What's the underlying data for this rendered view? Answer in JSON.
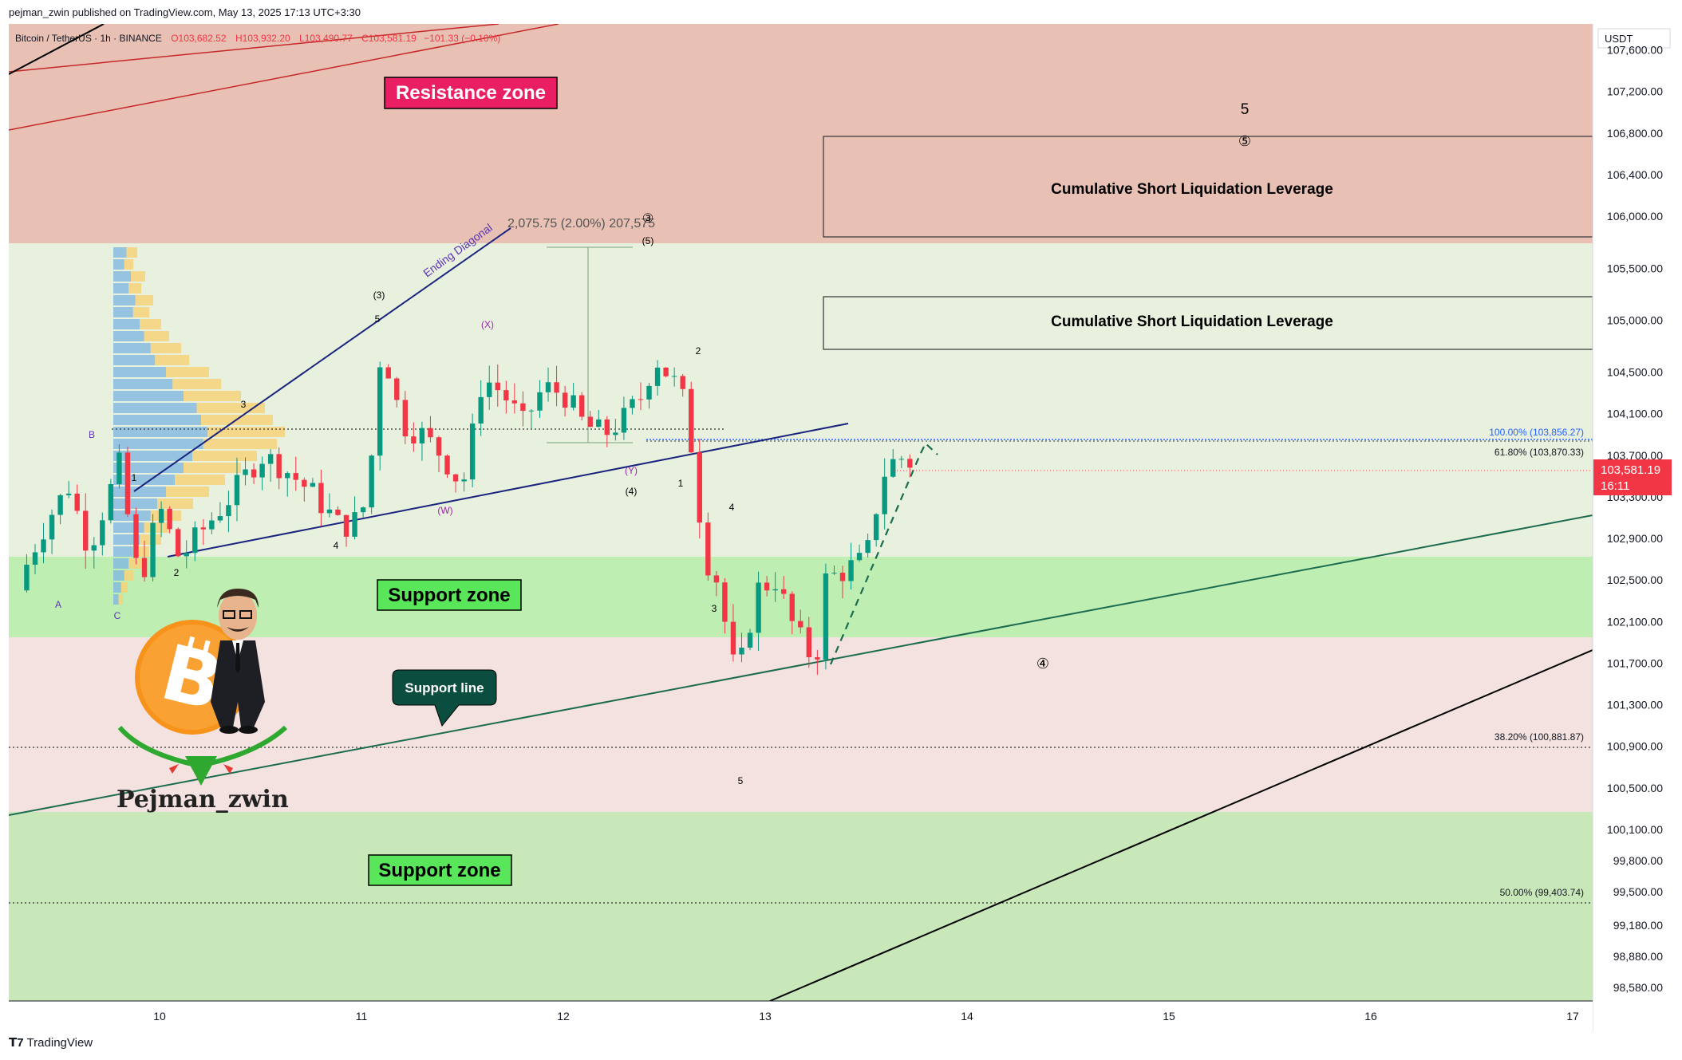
{
  "publisher_line": "pejman_zwin published on TradingView.com, May 13, 2025 17:13 UTC+3:30",
  "brand_label": "TradingView",
  "brand_icon": "tradingview-logo-icon",
  "header": {
    "symbol": "Bitcoin / TetherUS · 1h · BINANCE",
    "open": "O103,682.52",
    "high": "H103,932.20",
    "low": "L103,490.77",
    "close": "C103,581.19",
    "change": "−101.33 (−0.10%)"
  },
  "currency_label": "USDT",
  "price_axis_ticks": [
    "107,600.00",
    "107,200.00",
    "106,800.00",
    "106,400.00",
    "106,000.00",
    "105,500.00",
    "105,000.00",
    "104,500.00",
    "104,100.00",
    "103,700.00",
    "103,300.00",
    "102,900.00",
    "102,500.00",
    "102,100.00",
    "101,700.00",
    "101,300.00",
    "100,900.00",
    "100,500.00",
    "100,100.00",
    "99,800.00",
    "99,500.00",
    "99,180.00",
    "98,880.00",
    "98,580.00"
  ],
  "last_price": {
    "value": "103,581.19",
    "countdown": "16:11"
  },
  "time_axis_ticks": [
    "10",
    "11",
    "12",
    "13",
    "14",
    "15",
    "16",
    "17"
  ],
  "zones": {
    "resistance": "Resistance zone",
    "support_upper": "Support zone",
    "support_lower": "Support zone",
    "support_line": "Support line"
  },
  "liquidation_boxes": [
    "Cumulative Short Liquidation Leverage",
    "Cumulative Short Liquidation Leverage"
  ],
  "fib_levels": {
    "fib_100": "100.00% (103,856.27)",
    "fib_618": "61.80% (103,870.33)",
    "fib_382": "38.20% (100,881.87)",
    "fib_50": "50.00% (99,403.74)"
  },
  "measure_label": "2,075.75 (2.00%) 207,575",
  "pattern_label": "Ending Diagonal",
  "wave_labels": {
    "a": "A",
    "b": "B",
    "c": "C",
    "w1": "1",
    "w2": "2",
    "w3": "3",
    "w4": "4",
    "w5": "5",
    "p3": "(3)",
    "px": "(X)",
    "pw": "(W)",
    "py": "(Y)",
    "p4": "(4)",
    "p5": "(5)",
    "circ3": "③",
    "d1": "1",
    "d2": "2",
    "d3": "3",
    "d4": "4",
    "d5": "5",
    "big5": "5",
    "circ5": "⑤",
    "circ4": "④"
  },
  "watermark": "Pejman_zwin",
  "colors": {
    "resistance_zone": "#e8c0b4",
    "support_zone": "#bfeeb3",
    "neutral_zone": "#f3e2df",
    "light_green_zone": "#e6f0dc",
    "up_candle": "#089981",
    "down_candle": "#f23645",
    "zone_label_red": "#e91e63",
    "zone_label_green": "#5ae65a",
    "support_line_label": "#0b4d3e",
    "last_price": "#f23645"
  },
  "chart_data": {
    "type": "candlestick",
    "title": "Bitcoin / TetherUS · 1h · BINANCE",
    "xlabel": "",
    "ylabel": "",
    "x_ticks": [
      "10",
      "11",
      "12",
      "13",
      "14",
      "15",
      "16",
      "17"
    ],
    "ylim": [
      98450,
      107850
    ],
    "last_close": 103581.19,
    "close_path": [
      [
        9.3,
        102400
      ],
      [
        9.35,
        102700
      ],
      [
        9.45,
        103100
      ],
      [
        9.55,
        103400
      ],
      [
        9.65,
        102800
      ],
      [
        9.8,
        103600
      ],
      [
        9.9,
        102450
      ],
      [
        10.0,
        103200
      ],
      [
        10.1,
        102700
      ],
      [
        10.2,
        102950
      ],
      [
        10.35,
        103300
      ],
      [
        10.5,
        103700
      ],
      [
        10.6,
        103600
      ],
      [
        10.75,
        103350
      ],
      [
        10.9,
        103000
      ],
      [
        11.0,
        103100
      ],
      [
        11.05,
        103700
      ],
      [
        11.1,
        104800
      ],
      [
        11.2,
        104000
      ],
      [
        11.3,
        103900
      ],
      [
        11.4,
        103700
      ],
      [
        11.5,
        103400
      ],
      [
        11.55,
        103900
      ],
      [
        11.6,
        104450
      ],
      [
        11.7,
        104300
      ],
      [
        11.8,
        104000
      ],
      [
        11.9,
        104350
      ],
      [
        12.0,
        104300
      ],
      [
        12.1,
        104000
      ],
      [
        12.2,
        103900
      ],
      [
        12.3,
        104050
      ],
      [
        12.4,
        104300
      ],
      [
        12.45,
        104650
      ],
      [
        12.55,
        104400
      ],
      [
        12.6,
        104200
      ],
      [
        12.65,
        103600
      ],
      [
        12.7,
        102700
      ],
      [
        12.75,
        102600
      ],
      [
        12.85,
        101600
      ],
      [
        12.9,
        101800
      ],
      [
        12.95,
        102400
      ],
      [
        13.05,
        102500
      ],
      [
        13.15,
        102000
      ],
      [
        13.25,
        101700
      ],
      [
        13.3,
        102500
      ],
      [
        13.4,
        102600
      ],
      [
        13.5,
        102700
      ],
      [
        13.55,
        103200
      ],
      [
        13.6,
        103600
      ],
      [
        13.7,
        103700
      ],
      [
        13.75,
        103581.19
      ]
    ],
    "projection": [
      [
        13.82,
        101750
      ],
      [
        14.05,
        103650
      ],
      [
        14.1,
        103850
      ]
    ],
    "levels": [
      {
        "name": "fib_100",
        "value": 103856.27
      },
      {
        "name": "fib_618",
        "value": 103870.33
      },
      {
        "name": "fib_382",
        "value": 100881.87
      },
      {
        "name": "fib_50",
        "value": 99403.74
      }
    ],
    "zones": [
      {
        "name": "resistance",
        "from": 105850,
        "to": 107850
      },
      {
        "name": "support_upper",
        "from": 101950,
        "to": 102650
      },
      {
        "name": "support_lower",
        "from": 98450,
        "to": 100270
      }
    ],
    "liquidation_boxes": [
      {
        "from": 105950,
        "to": 106950
      },
      {
        "from": 104800,
        "to": 105320
      }
    ],
    "trendlines": [
      {
        "name": "support_line",
        "from": [
          9.0,
          100400
        ],
        "to": [
          17.1,
          103200
        ]
      },
      {
        "name": "diagonal_lower",
        "from": [
          10.05,
          102700
        ],
        "to": [
          13.4,
          104050
        ]
      },
      {
        "name": "diagonal_upper",
        "from": [
          9.9,
          103400
        ],
        "to": [
          11.7,
          105950
        ]
      },
      {
        "name": "black_support",
        "from": [
          13.0,
          98450
        ],
        "to": [
          17.1,
          101800
        ]
      }
    ]
  }
}
